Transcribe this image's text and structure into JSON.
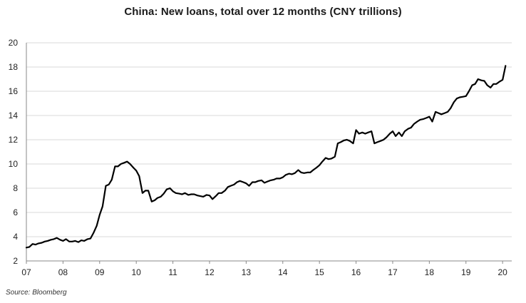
{
  "chart_data": {
    "type": "line",
    "title": "China: New loans, total over 12 months (CNY trillions)",
    "xlabel": "",
    "ylabel": "",
    "source": "Source: Bloomberg",
    "xlim": [
      2007.0,
      2020.25
    ],
    "ylim": [
      2,
      20
    ],
    "grid": true,
    "legend": "none",
    "colors": {
      "line": "#000000",
      "grid": "#d9d9d9",
      "axis": "#888888"
    },
    "x_ticks": [
      {
        "value": 2007,
        "label": "07"
      },
      {
        "value": 2008,
        "label": "08"
      },
      {
        "value": 2009,
        "label": "09"
      },
      {
        "value": 2010,
        "label": "10"
      },
      {
        "value": 2011,
        "label": "11"
      },
      {
        "value": 2012,
        "label": "12"
      },
      {
        "value": 2013,
        "label": "13"
      },
      {
        "value": 2014,
        "label": "14"
      },
      {
        "value": 2015,
        "label": "15"
      },
      {
        "value": 2016,
        "label": "16"
      },
      {
        "value": 2017,
        "label": "17"
      },
      {
        "value": 2018,
        "label": "18"
      },
      {
        "value": 2019,
        "label": "19"
      },
      {
        "value": 2020,
        "label": "20"
      }
    ],
    "y_ticks": [
      {
        "value": 2,
        "label": "2"
      },
      {
        "value": 4,
        "label": "4"
      },
      {
        "value": 6,
        "label": "6"
      },
      {
        "value": 8,
        "label": "8"
      },
      {
        "value": 10,
        "label": "10"
      },
      {
        "value": 12,
        "label": "12"
      },
      {
        "value": 14,
        "label": "14"
      },
      {
        "value": 16,
        "label": "16"
      },
      {
        "value": 18,
        "label": "18"
      },
      {
        "value": 20,
        "label": "20"
      }
    ],
    "series": [
      {
        "x": [
          2007.0,
          2007.08,
          2007.17,
          2007.25,
          2007.33,
          2007.42,
          2007.5,
          2007.58,
          2007.67,
          2007.75,
          2007.83,
          2007.92,
          2008.0,
          2008.08,
          2008.17,
          2008.25,
          2008.33,
          2008.42,
          2008.5,
          2008.58,
          2008.67,
          2008.75,
          2008.83,
          2008.92,
          2009.0,
          2009.08,
          2009.17,
          2009.25,
          2009.33,
          2009.42,
          2009.5,
          2009.58,
          2009.67,
          2009.75,
          2009.83,
          2009.92,
          2010.0,
          2010.08,
          2010.17,
          2010.25,
          2010.33,
          2010.42,
          2010.5,
          2010.58,
          2010.67,
          2010.75,
          2010.83,
          2010.92,
          2011.0,
          2011.08,
          2011.17,
          2011.25,
          2011.33,
          2011.42,
          2011.5,
          2011.58,
          2011.67,
          2011.75,
          2011.83,
          2011.92,
          2012.0,
          2012.08,
          2012.17,
          2012.25,
          2012.33,
          2012.42,
          2012.5,
          2012.58,
          2012.67,
          2012.75,
          2012.83,
          2012.92,
          2013.0,
          2013.08,
          2013.17,
          2013.25,
          2013.33,
          2013.42,
          2013.5,
          2013.58,
          2013.67,
          2013.75,
          2013.83,
          2013.92,
          2014.0,
          2014.08,
          2014.17,
          2014.25,
          2014.33,
          2014.42,
          2014.5,
          2014.58,
          2014.67,
          2014.75,
          2014.83,
          2014.92,
          2015.0,
          2015.08,
          2015.17,
          2015.25,
          2015.33,
          2015.42,
          2015.5,
          2015.58,
          2015.67,
          2015.75,
          2015.83,
          2015.92,
          2016.0,
          2016.08,
          2016.17,
          2016.25,
          2016.33,
          2016.42,
          2016.5,
          2016.58,
          2016.67,
          2016.75,
          2016.83,
          2016.92,
          2017.0,
          2017.08,
          2017.17,
          2017.25,
          2017.33,
          2017.42,
          2017.5,
          2017.58,
          2017.67,
          2017.75,
          2017.83,
          2017.92,
          2018.0,
          2018.08,
          2018.17,
          2018.25,
          2018.33,
          2018.42,
          2018.5,
          2018.58,
          2018.67,
          2018.75,
          2018.83,
          2018.92,
          2019.0,
          2019.08,
          2019.17,
          2019.25,
          2019.33,
          2019.42,
          2019.5,
          2019.58,
          2019.67,
          2019.75,
          2019.83,
          2019.92,
          2020.0,
          2020.08
        ],
        "values": [
          3.1,
          3.15,
          3.4,
          3.35,
          3.45,
          3.5,
          3.6,
          3.65,
          3.75,
          3.8,
          3.9,
          3.75,
          3.65,
          3.8,
          3.6,
          3.6,
          3.65,
          3.55,
          3.7,
          3.65,
          3.8,
          3.85,
          4.3,
          4.9,
          5.8,
          6.5,
          8.2,
          8.3,
          8.7,
          9.8,
          9.8,
          10.0,
          10.1,
          10.2,
          10.0,
          9.7,
          9.45,
          9.0,
          7.6,
          7.8,
          7.8,
          6.9,
          7.0,
          7.2,
          7.3,
          7.55,
          7.9,
          8.0,
          7.75,
          7.6,
          7.55,
          7.5,
          7.6,
          7.45,
          7.5,
          7.5,
          7.4,
          7.35,
          7.3,
          7.45,
          7.4,
          7.1,
          7.35,
          7.6,
          7.6,
          7.8,
          8.1,
          8.2,
          8.3,
          8.5,
          8.6,
          8.5,
          8.4,
          8.2,
          8.5,
          8.5,
          8.6,
          8.65,
          8.45,
          8.55,
          8.65,
          8.7,
          8.8,
          8.8,
          8.9,
          9.1,
          9.2,
          9.15,
          9.25,
          9.5,
          9.3,
          9.25,
          9.3,
          9.3,
          9.5,
          9.7,
          9.9,
          10.2,
          10.5,
          10.4,
          10.45,
          10.6,
          11.7,
          11.8,
          11.95,
          12.0,
          11.9,
          11.7,
          12.8,
          12.5,
          12.6,
          12.5,
          12.6,
          12.7,
          11.7,
          11.8,
          11.9,
          12.0,
          12.2,
          12.5,
          12.7,
          12.3,
          12.6,
          12.3,
          12.7,
          12.9,
          13.0,
          13.3,
          13.5,
          13.65,
          13.7,
          13.8,
          13.9,
          13.5,
          14.3,
          14.2,
          14.1,
          14.2,
          14.3,
          14.6,
          15.1,
          15.4,
          15.5,
          15.55,
          15.6,
          16.0,
          16.5,
          16.6,
          17.0,
          16.9,
          16.85,
          16.5,
          16.3,
          16.6,
          16.6,
          16.8,
          16.95,
          18.1
        ]
      }
    ]
  }
}
